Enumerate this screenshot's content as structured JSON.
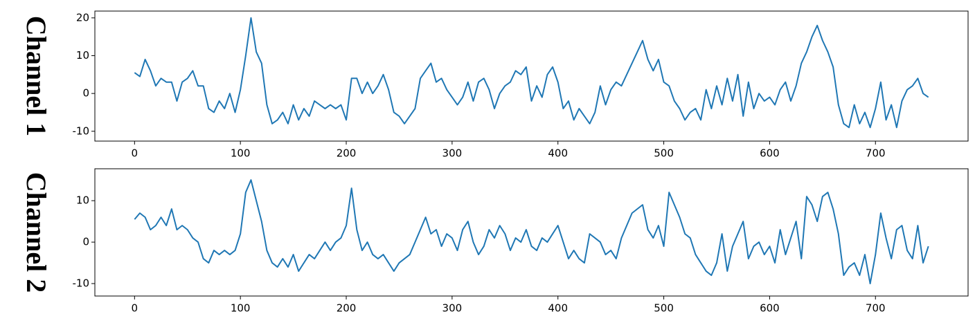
{
  "chart_data": [
    {
      "type": "line",
      "ylabel": "Channel 1",
      "x": [
        0,
        5,
        10,
        15,
        20,
        25,
        30,
        35,
        40,
        45,
        50,
        55,
        60,
        65,
        70,
        75,
        80,
        85,
        90,
        95,
        100,
        105,
        110,
        115,
        120,
        125,
        130,
        135,
        140,
        145,
        150,
        155,
        160,
        165,
        170,
        175,
        180,
        185,
        190,
        195,
        200,
        205,
        210,
        215,
        220,
        225,
        230,
        235,
        240,
        245,
        250,
        255,
        260,
        265,
        270,
        275,
        280,
        285,
        290,
        295,
        300,
        305,
        310,
        315,
        320,
        325,
        330,
        335,
        340,
        345,
        350,
        355,
        360,
        365,
        370,
        375,
        380,
        385,
        390,
        395,
        400,
        405,
        410,
        415,
        420,
        425,
        430,
        435,
        440,
        445,
        450,
        455,
        460,
        465,
        470,
        475,
        480,
        485,
        490,
        495,
        500,
        505,
        510,
        515,
        520,
        525,
        530,
        535,
        540,
        545,
        550,
        555,
        560,
        565,
        570,
        575,
        580,
        585,
        590,
        595,
        600,
        605,
        610,
        615,
        620,
        625,
        630,
        635,
        640,
        645,
        650,
        655,
        660,
        665,
        670,
        675,
        680,
        685,
        690,
        695,
        700,
        705,
        710,
        715,
        720,
        725,
        730,
        735,
        740,
        745,
        750
      ],
      "series": [
        {
          "color": "#1f77b4",
          "values": [
            5.5,
            4.5,
            9,
            6,
            2,
            4,
            3,
            3,
            -2,
            3,
            4,
            6,
            2,
            2,
            -4,
            -5,
            -2,
            -4,
            0,
            -5,
            1,
            10,
            20,
            11,
            8,
            -3,
            -8,
            -7,
            -5,
            -8,
            -3,
            -7,
            -4,
            -6,
            -2,
            -3,
            -4,
            -3,
            -4,
            -3,
            -7,
            4,
            4,
            0,
            3,
            0,
            2,
            5,
            1,
            -5,
            -6,
            -8,
            -6,
            -4,
            4,
            6,
            8,
            3,
            4,
            1,
            -1,
            -3,
            -1,
            3,
            -2,
            3,
            4,
            1,
            -4,
            0,
            2,
            3,
            6,
            5,
            7,
            -2,
            2,
            -1,
            5,
            7,
            3,
            -4,
            -2,
            -7,
            -4,
            -6,
            -8,
            -5,
            2,
            -3,
            1,
            3,
            2,
            5,
            8,
            11,
            14,
            9,
            6,
            9,
            3,
            2,
            -2,
            -4,
            -7,
            -5,
            -4,
            -7,
            1,
            -4,
            2,
            -3,
            4,
            -2,
            5,
            -6,
            3,
            -4,
            0,
            -2,
            -1,
            -3,
            1,
            3,
            -2,
            2,
            8,
            11,
            15,
            18,
            14,
            11,
            7,
            -3,
            -8,
            -9,
            -3,
            -8,
            -5,
            -9,
            -4,
            3,
            -7,
            -3,
            -9,
            -2,
            1,
            2,
            4,
            0,
            -1
          ]
        }
      ],
      "xlim": [
        -37.5,
        787.5
      ],
      "ylim": [
        -12.6,
        21.8
      ],
      "xticks": [
        0,
        100,
        200,
        300,
        400,
        500,
        600,
        700
      ],
      "yticks": [
        -10,
        0,
        10,
        20
      ]
    },
    {
      "type": "line",
      "ylabel": "Channel 2",
      "x": [
        0,
        5,
        10,
        15,
        20,
        25,
        30,
        35,
        40,
        45,
        50,
        55,
        60,
        65,
        70,
        75,
        80,
        85,
        90,
        95,
        100,
        105,
        110,
        115,
        120,
        125,
        130,
        135,
        140,
        145,
        150,
        155,
        160,
        165,
        170,
        175,
        180,
        185,
        190,
        195,
        200,
        205,
        210,
        215,
        220,
        225,
        230,
        235,
        240,
        245,
        250,
        255,
        260,
        265,
        270,
        275,
        280,
        285,
        290,
        295,
        300,
        305,
        310,
        315,
        320,
        325,
        330,
        335,
        340,
        345,
        350,
        355,
        360,
        365,
        370,
        375,
        380,
        385,
        390,
        395,
        400,
        405,
        410,
        415,
        420,
        425,
        430,
        435,
        440,
        445,
        450,
        455,
        460,
        465,
        470,
        475,
        480,
        485,
        490,
        495,
        500,
        505,
        510,
        515,
        520,
        525,
        530,
        535,
        540,
        545,
        550,
        555,
        560,
        565,
        570,
        575,
        580,
        585,
        590,
        595,
        600,
        605,
        610,
        615,
        620,
        625,
        630,
        635,
        640,
        645,
        650,
        655,
        660,
        665,
        670,
        675,
        680,
        685,
        690,
        695,
        700,
        705,
        710,
        715,
        720,
        725,
        730,
        735,
        740,
        745,
        750
      ],
      "series": [
        {
          "color": "#1f77b4",
          "values": [
            5.5,
            7,
            6,
            3,
            4,
            6,
            4,
            8,
            3,
            4,
            3,
            1,
            0,
            -4,
            -5,
            -2,
            -3,
            -2,
            -3,
            -2,
            2,
            12,
            15,
            10,
            5,
            -2,
            -5,
            -6,
            -4,
            -6,
            -3,
            -7,
            -5,
            -3,
            -4,
            -2,
            0,
            -2,
            0,
            1,
            4,
            13,
            3,
            -2,
            0,
            -3,
            -4,
            -3,
            -5,
            -7,
            -5,
            -4,
            -3,
            0,
            3,
            6,
            2,
            3,
            -1,
            2,
            1,
            -2,
            3,
            5,
            0,
            -3,
            -1,
            3,
            1,
            4,
            2,
            -2,
            1,
            0,
            3,
            -1,
            -2,
            1,
            0,
            2,
            4,
            0,
            -4,
            -2,
            -4,
            -5,
            2,
            1,
            0,
            -3,
            -2,
            -4,
            1,
            4,
            7,
            8,
            9,
            3,
            1,
            4,
            -1,
            12,
            9,
            6,
            2,
            1,
            -3,
            -5,
            -7,
            -8,
            -5,
            2,
            -7,
            -1,
            2,
            5,
            -4,
            -1,
            0,
            -3,
            -1,
            -5,
            3,
            -3,
            1,
            5,
            -4,
            11,
            9,
            5,
            11,
            12,
            8,
            2,
            -8,
            -6,
            -5,
            -8,
            -3,
            -10,
            -3,
            7,
            1,
            -4,
            3,
            4,
            -2,
            -4,
            4,
            -5,
            -1
          ]
        }
      ],
      "xlim": [
        -37.5,
        787.5
      ],
      "ylim": [
        -13,
        17.7
      ],
      "xticks": [
        0,
        100,
        200,
        300,
        400,
        500,
        600,
        700
      ],
      "yticks": [
        -10,
        0,
        10
      ]
    }
  ]
}
